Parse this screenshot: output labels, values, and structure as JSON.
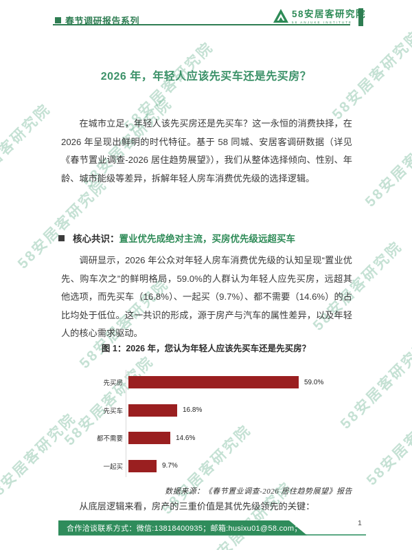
{
  "page": {
    "number": "1",
    "watermark_text": "58安居客研究院"
  },
  "header": {
    "series_label": "春节调研报告系列",
    "logo": {
      "brand_name": "58安居客研究院",
      "brand_subtext": "58 ANJUKE INSTITUTE"
    }
  },
  "article": {
    "title": "2026 年，年轻人应该先买车还是先买房？",
    "paragraph1": "在城市立足，年轻人该先买房还是先买车？这一永恒的消费抉择，在 2026 年呈现出鲜明的时代特征。基于 58 同城、安居客调研数据（详见《春节置业调查-2026 居住趋势展望》），我们从整体选择倾向、性别、年龄、城市能级等差异，拆解年轻人房车消费优先级的选择逻辑。",
    "section_heading": {
      "prefix": "核心共识：",
      "highlight": "置业优先成绝对主流，买房优先级远超买车"
    },
    "paragraph2": "调研显示，2026 年公众对年轻人房车消费优先级的认知呈现“置业优先、购车次之”的鲜明格局，59.0%的人群认为年轻人应先买房，远超其他选项，而先买车（16.8%）、一起买（9.7%）、都不需要（14.6%）的占比均处于低位。这一共识的形成，源于房产与汽车的属性差异，以及年轻人的核心需求驱动。",
    "chart_caption": "图 1：2026 年，您认为年轻人应该先买车还是先买房？",
    "data_source": "数据来源：《春节置业调查-2026 居住趋势展望》报告",
    "paragraph3": "从底层逻辑来看，房产的三重价值是其优先级领先的关键："
  },
  "chart_data": {
    "type": "bar",
    "orientation": "horizontal",
    "title": "图 1：2026 年，您认为年轻人应该先买车还是先买房？",
    "categories": [
      "先买房",
      "先买车",
      "都不需要",
      "一起买"
    ],
    "values": [
      59.0,
      16.8,
      14.6,
      9.7
    ],
    "value_labels": [
      "59.0%",
      "16.8%",
      "14.6%",
      "9.7%"
    ],
    "xlim": [
      0,
      70
    ],
    "bar_color": "#9A1F20",
    "grid": false,
    "legend": false
  },
  "footer": {
    "contact_text": "合作洽谈联系方式：微信:13818400935；邮箱:husixu01@58.com；"
  },
  "colors": {
    "brand_green": "#2E8B57",
    "rule_green": "#2E7D52",
    "bar_red": "#9A1F20",
    "footer_green": "#2F8C5B",
    "watermark_green": "#4da47c"
  }
}
